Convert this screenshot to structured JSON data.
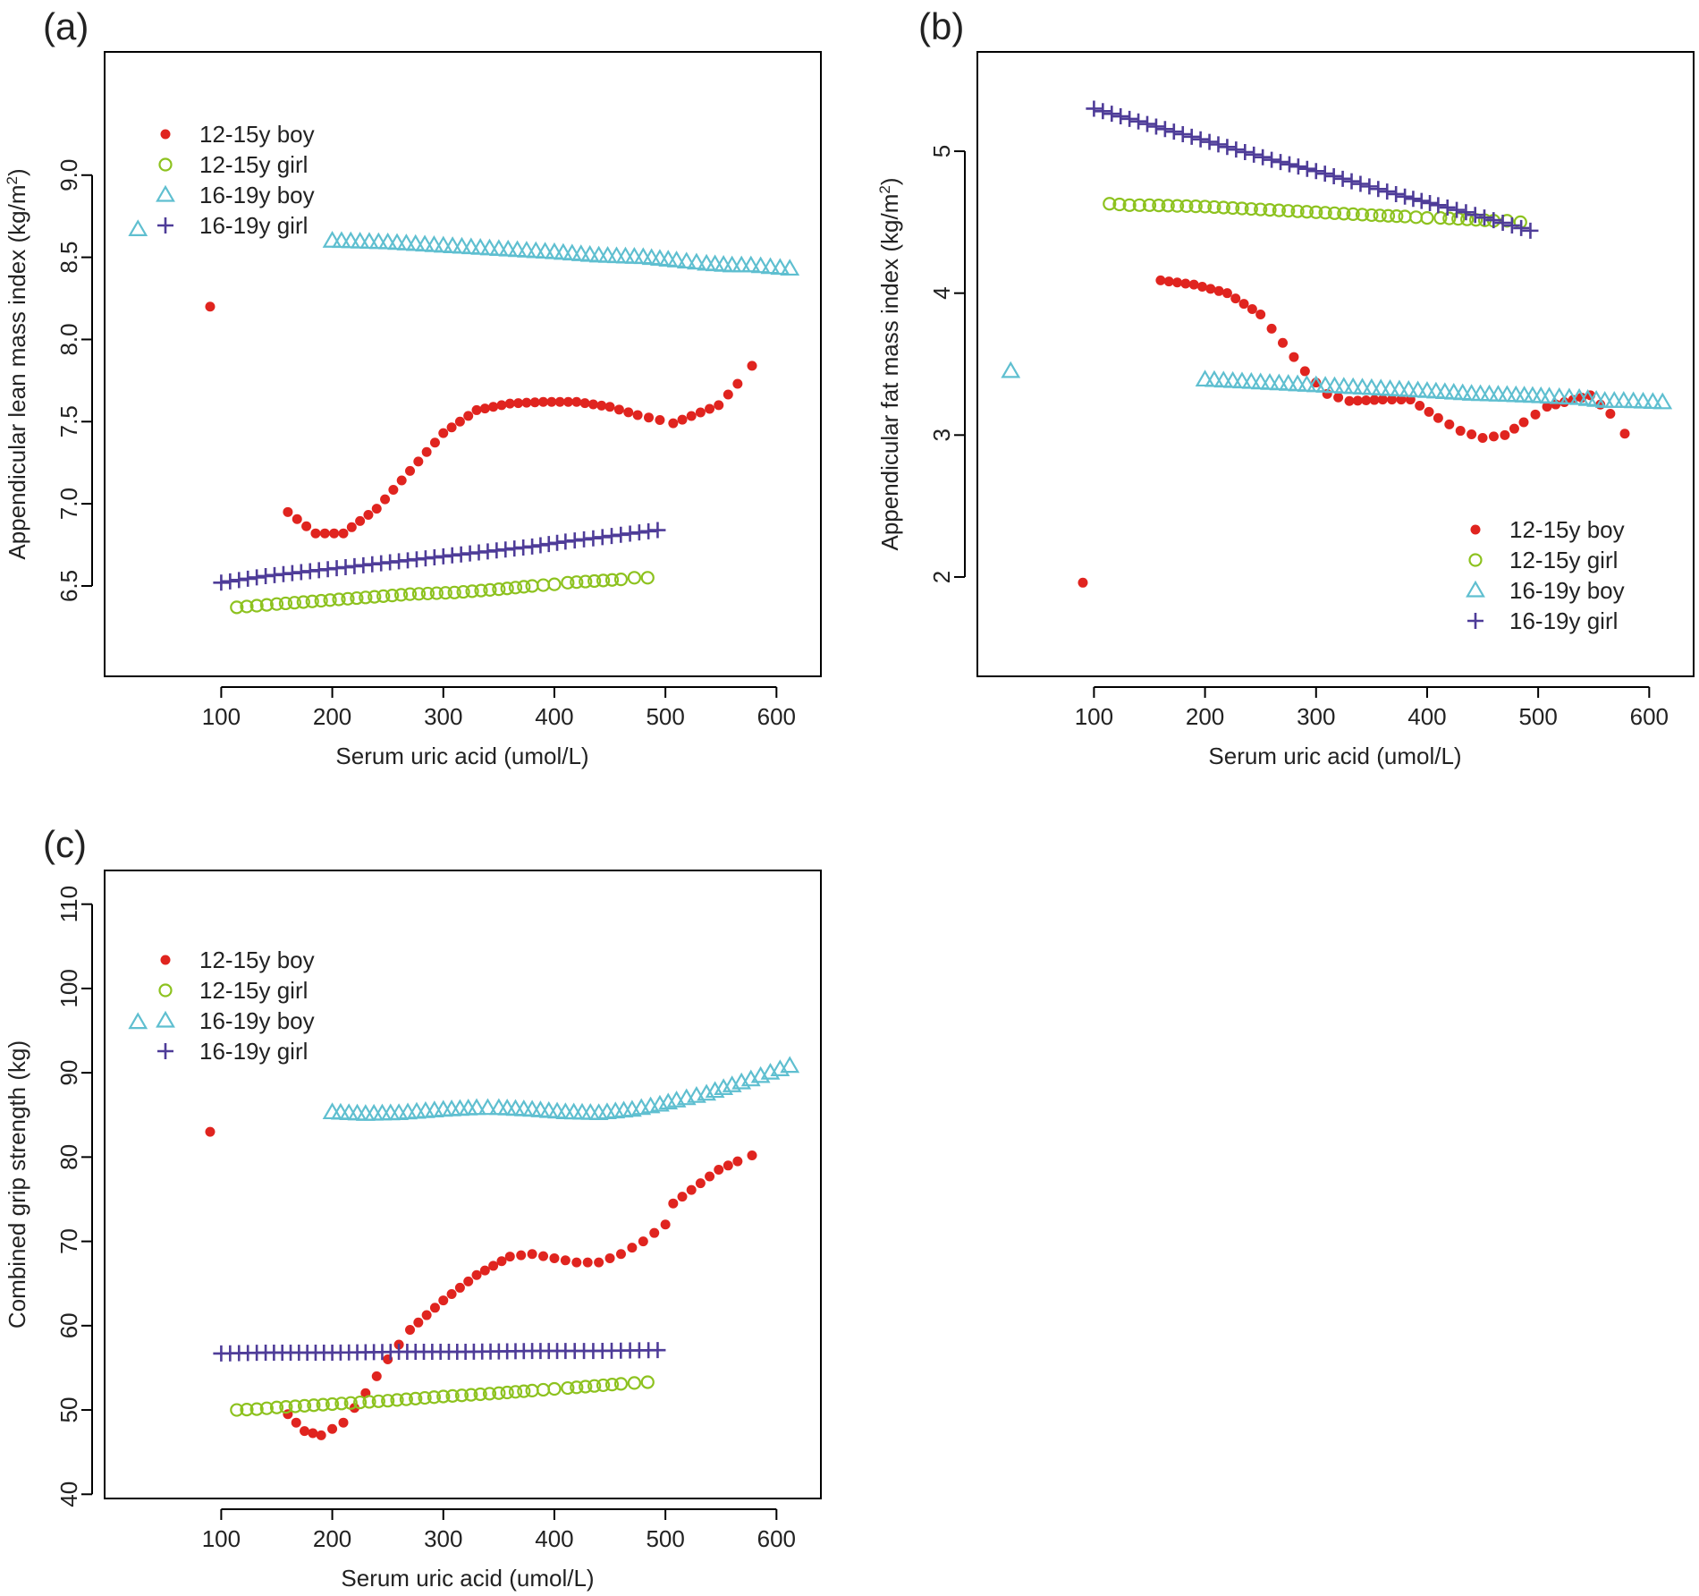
{
  "colors": {
    "boy12": "#e0241f",
    "girl12": "#8dc21f",
    "boy16": "#5fbfd0",
    "girl16": "#4e3c98",
    "axis": "#000000"
  },
  "chart_data": [
    {
      "id": "a",
      "panel_label": "(a)",
      "type": "scatter",
      "title": "",
      "xlabel": "Serum uric acid (umol/L)",
      "ylabel_main": "Appendicular lean mass index (kg/m",
      "ylabel_sup": "2",
      "ylabel_end": ")",
      "xlim": [
        -5,
        640
      ],
      "ylim": [
        5.95,
        9.75
      ],
      "xticks": [
        100,
        200,
        300,
        400,
        500,
        600
      ],
      "xtick_labels": [
        "100",
        "200",
        "300",
        "400",
        "500",
        "600"
      ],
      "yticks": [
        6.5,
        7.0,
        7.5,
        8.0,
        8.5,
        9.0
      ],
      "ytick_labels": [
        "6.5",
        "7.0",
        "7.5",
        "8.0",
        "8.5",
        "9.0"
      ],
      "legend": [
        "12-15y boy",
        "12-15y girl",
        "16-19y boy",
        "16-19y girl"
      ],
      "legend_position": "top-left",
      "series": [
        {
          "name": "12-15y boy",
          "x": [
            90,
            160,
            185,
            210,
            240,
            270,
            300,
            330,
            360,
            390,
            420,
            450,
            475,
            495,
            507,
            548,
            565,
            578
          ],
          "y": [
            8.2,
            6.95,
            6.82,
            6.82,
            6.97,
            7.2,
            7.43,
            7.57,
            7.61,
            7.62,
            7.62,
            7.59,
            7.54,
            7.51,
            7.49,
            7.6,
            7.73,
            7.84
          ]
        },
        {
          "name": "12-15y girl",
          "x": [
            114,
            132,
            150,
            190,
            230,
            270,
            310,
            350,
            380,
            400,
            412,
            460,
            472,
            484
          ],
          "y": [
            6.37,
            6.38,
            6.39,
            6.41,
            6.43,
            6.45,
            6.46,
            6.48,
            6.5,
            6.51,
            6.52,
            6.54,
            6.55,
            6.55
          ]
        },
        {
          "name": "16-19y boy",
          "x": [
            25,
            200,
            250,
            300,
            350,
            400,
            440,
            480,
            510,
            537,
            560,
            577,
            612
          ],
          "y": [
            8.67,
            8.6,
            8.59,
            8.57,
            8.55,
            8.53,
            8.51,
            8.5,
            8.48,
            8.46,
            8.45,
            8.45,
            8.43
          ]
        },
        {
          "name": "16-19y girl",
          "x": [
            100,
            140,
            180,
            220,
            260,
            300,
            340,
            380,
            410,
            435,
            493
          ],
          "y": [
            6.52,
            6.56,
            6.59,
            6.62,
            6.65,
            6.68,
            6.71,
            6.74,
            6.77,
            6.79,
            6.84
          ]
        }
      ]
    },
    {
      "id": "b",
      "panel_label": "(b)",
      "type": "scatter",
      "title": "",
      "xlabel": "Serum uric acid (umol/L)",
      "ylabel_main": "Appendicular fat mass index (kg/m",
      "ylabel_sup": "2",
      "ylabel_end": ")",
      "xlim": [
        -5,
        640
      ],
      "ylim": [
        1.3,
        5.7
      ],
      "xticks": [
        100,
        200,
        300,
        400,
        500,
        600
      ],
      "xtick_labels": [
        "100",
        "200",
        "300",
        "400",
        "500",
        "600"
      ],
      "yticks": [
        2,
        3,
        4,
        5
      ],
      "ytick_labels": [
        "2",
        "3",
        "4",
        "5"
      ],
      "legend": [
        "12-15y boy",
        "12-15y girl",
        "16-19y boy",
        "16-19y girl"
      ],
      "legend_position": "bottom-right",
      "series": [
        {
          "name": "12-15y boy",
          "x": [
            90,
            160,
            190,
            220,
            250,
            270,
            290,
            310,
            330,
            360,
            385,
            410,
            430,
            450,
            470,
            487,
            508,
            547,
            565,
            578
          ],
          "y": [
            1.96,
            4.09,
            4.06,
            4.0,
            3.85,
            3.65,
            3.45,
            3.29,
            3.24,
            3.25,
            3.25,
            3.12,
            3.03,
            2.98,
            3.0,
            3.09,
            3.2,
            3.28,
            3.15,
            3.01
          ]
        },
        {
          "name": "12-15y girl",
          "x": [
            114,
            132,
            150,
            200,
            250,
            300,
            350,
            380,
            400,
            412,
            460,
            472,
            484
          ],
          "y": [
            4.63,
            4.62,
            4.62,
            4.61,
            4.59,
            4.57,
            4.55,
            4.54,
            4.53,
            4.53,
            4.51,
            4.51,
            4.5
          ]
        },
        {
          "name": "16-19y boy",
          "x": [
            25,
            200,
            250,
            300,
            350,
            400,
            440,
            480,
            510,
            537,
            560,
            577,
            612
          ],
          "y": [
            3.45,
            3.39,
            3.37,
            3.35,
            3.33,
            3.31,
            3.29,
            3.28,
            3.27,
            3.26,
            3.24,
            3.24,
            3.23
          ]
        },
        {
          "name": "16-19y girl",
          "x": [
            100,
            140,
            180,
            220,
            260,
            300,
            340,
            380,
            410,
            435,
            493
          ],
          "y": [
            5.3,
            5.21,
            5.12,
            5.03,
            4.94,
            4.86,
            4.77,
            4.68,
            4.62,
            4.57,
            4.44
          ]
        }
      ]
    },
    {
      "id": "c",
      "panel_label": "(c)",
      "type": "scatter",
      "title": "",
      "xlabel": "Serum uric acid (umol/L)",
      "ylabel_main": "Combined grip strength (kg)",
      "ylabel_sup": "",
      "ylabel_end": "",
      "xlim": [
        -5,
        640
      ],
      "ylim": [
        39.5,
        114
      ],
      "xticks": [
        100,
        200,
        300,
        400,
        500,
        600
      ],
      "xtick_labels": [
        "100",
        "200",
        "300",
        "400",
        "500",
        "600"
      ],
      "yticks": [
        40,
        50,
        60,
        70,
        80,
        90,
        100,
        110
      ],
      "ytick_labels": [
        "40",
        "50",
        "60",
        "70",
        "80",
        "90",
        "100",
        "110"
      ],
      "legend": [
        "12-15y boy",
        "12-15y girl",
        "16-19y boy",
        "16-19y girl"
      ],
      "legend_position": "top-left",
      "series": [
        {
          "name": "12-15y boy",
          "x": [
            90,
            160,
            175,
            190,
            210,
            230,
            250,
            270,
            300,
            330,
            360,
            380,
            400,
            420,
            440,
            460,
            480,
            500,
            507,
            548,
            565,
            578
          ],
          "y": [
            83,
            49.5,
            47.5,
            47,
            48.5,
            52,
            56,
            59.5,
            63,
            66,
            68.2,
            68.5,
            68,
            67.5,
            67.5,
            68.5,
            70,
            72,
            74.5,
            78.5,
            79.5,
            80.2
          ]
        },
        {
          "name": "12-15y girl",
          "x": [
            114,
            132,
            150,
            200,
            250,
            300,
            350,
            380,
            400,
            412,
            460,
            472,
            484
          ],
          "y": [
            50,
            50.1,
            50.3,
            50.7,
            51.1,
            51.6,
            52.0,
            52.3,
            52.5,
            52.6,
            53.1,
            53.2,
            53.3
          ]
        },
        {
          "name": "16-19y boy",
          "x": [
            25,
            200,
            230,
            260,
            300,
            330,
            350,
            380,
            410,
            440,
            470,
            495,
            510,
            537,
            560,
            577,
            612
          ],
          "y": [
            96,
            85.3,
            85.1,
            85.2,
            85.6,
            85.8,
            85.8,
            85.6,
            85.3,
            85.2,
            85.6,
            86.2,
            86.7,
            87.5,
            88.5,
            89.2,
            90.8
          ]
        },
        {
          "name": "16-19y girl",
          "x": [
            100,
            140,
            200,
            260,
            320,
            380,
            410,
            435,
            493
          ],
          "y": [
            56.7,
            56.8,
            56.8,
            56.9,
            56.9,
            57.0,
            57.0,
            57.0,
            57.1
          ]
        }
      ]
    }
  ]
}
